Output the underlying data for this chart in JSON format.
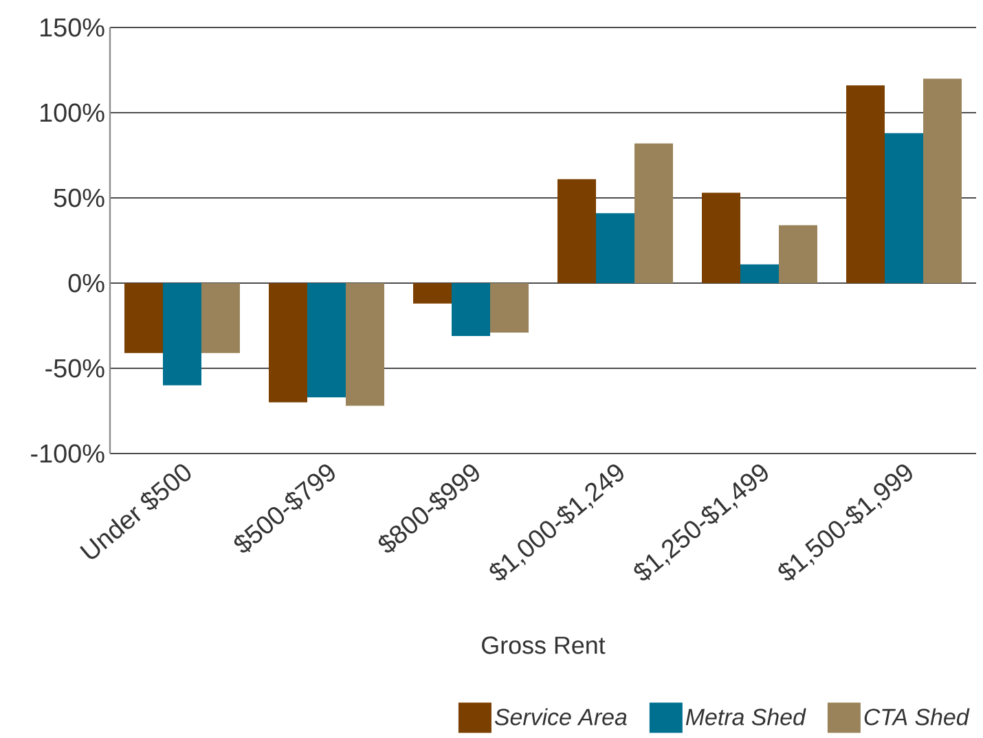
{
  "chart_data": {
    "type": "bar",
    "xlabel": "Gross Rent",
    "categories": [
      "Under $500",
      "$500-$799",
      "$800-$999",
      "$1,000-$1,249",
      "$1,250-$1,499",
      "$1,500-$1,999"
    ],
    "series": [
      {
        "name": "Service Area",
        "color": "#7b3f00",
        "values": [
          -41,
          -70,
          -12,
          61,
          53,
          116
        ]
      },
      {
        "name": "Metra Shed",
        "color": "#007090",
        "values": [
          -60,
          -67,
          -31,
          41,
          11,
          88
        ]
      },
      {
        "name": "CTA Shed",
        "color": "#9a835a",
        "values": [
          -41,
          -72,
          -29,
          82,
          34,
          120
        ]
      }
    ],
    "ylim": [
      -100,
      150
    ],
    "yticks": [
      {
        "value": -100,
        "label": "-100%"
      },
      {
        "value": -50,
        "label": "-50%"
      },
      {
        "value": 0,
        "label": "0%"
      },
      {
        "value": 50,
        "label": "50%"
      },
      {
        "value": 100,
        "label": "100%"
      },
      {
        "value": 150,
        "label": "150%"
      }
    ],
    "grid": "y",
    "legend": "bottom right"
  }
}
